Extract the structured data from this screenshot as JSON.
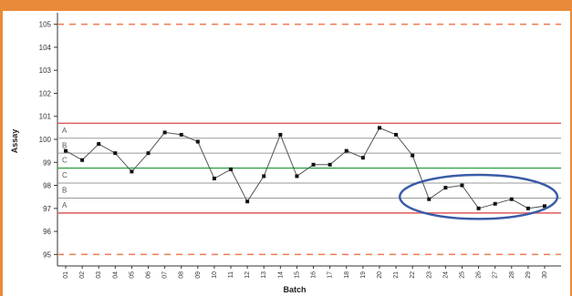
{
  "colors": {
    "frame": "#e98a3a",
    "control_limit": "#e05a5a",
    "spec_limit": "#f07a50",
    "center_line": "#2ea24a",
    "zone_line": "#9a9a9a",
    "series": "#555555",
    "marker": "#111111",
    "highlight_ellipse": "#3a5ba8"
  },
  "chart_data": {
    "type": "line",
    "title": "",
    "xlabel": "Batch",
    "ylabel": "Assay",
    "ylim": [
      94.5,
      105.5
    ],
    "yticks": [
      95,
      96,
      97,
      98,
      99,
      100,
      101,
      102,
      103,
      104,
      105
    ],
    "grid": false,
    "categories": [
      "01",
      "02",
      "03",
      "04",
      "05",
      "06",
      "07",
      "08",
      "09",
      "10",
      "11",
      "12",
      "13",
      "14",
      "15",
      "16",
      "17",
      "18",
      "19",
      "20",
      "21",
      "22",
      "23",
      "24",
      "25",
      "26",
      "27",
      "28",
      "29",
      "30"
    ],
    "series": [
      {
        "values": [
          99.5,
          99.1,
          99.8,
          99.4,
          98.6,
          99.4,
          100.3,
          100.2,
          99.9,
          98.3,
          98.7,
          97.3,
          98.4,
          100.2,
          98.4,
          98.9,
          98.9,
          99.5,
          99.2,
          100.5,
          100.2,
          99.3,
          97.4,
          97.9,
          98.0,
          97.0,
          97.2,
          97.4,
          97.0,
          97.1
        ]
      }
    ],
    "reference_lines": [
      {
        "kind": "spec",
        "value": 105.0,
        "style": "dashed"
      },
      {
        "kind": "spec",
        "value": 95.0,
        "style": "dashed"
      },
      {
        "kind": "control",
        "value": 100.7,
        "style": "solid"
      },
      {
        "kind": "control",
        "value": 96.8,
        "style": "solid"
      },
      {
        "kind": "zone",
        "value": 100.05,
        "style": "solid"
      },
      {
        "kind": "zone",
        "value": 99.4,
        "style": "solid"
      },
      {
        "kind": "center",
        "value": 98.75,
        "style": "solid"
      },
      {
        "kind": "zone",
        "value": 98.1,
        "style": "solid"
      },
      {
        "kind": "zone",
        "value": 97.45,
        "style": "solid"
      }
    ],
    "zone_labels": [
      {
        "text": "A",
        "value": 100.4
      },
      {
        "text": "B",
        "value": 99.75
      },
      {
        "text": "C",
        "value": 99.1
      },
      {
        "text": "C",
        "value": 98.45
      },
      {
        "text": "B",
        "value": 97.8
      },
      {
        "text": "A",
        "value": 97.15
      }
    ],
    "highlight": {
      "shape": "ellipse",
      "from_batch": "22",
      "to_batch": "30",
      "y_range": [
        96.7,
        98.3
      ]
    }
  }
}
